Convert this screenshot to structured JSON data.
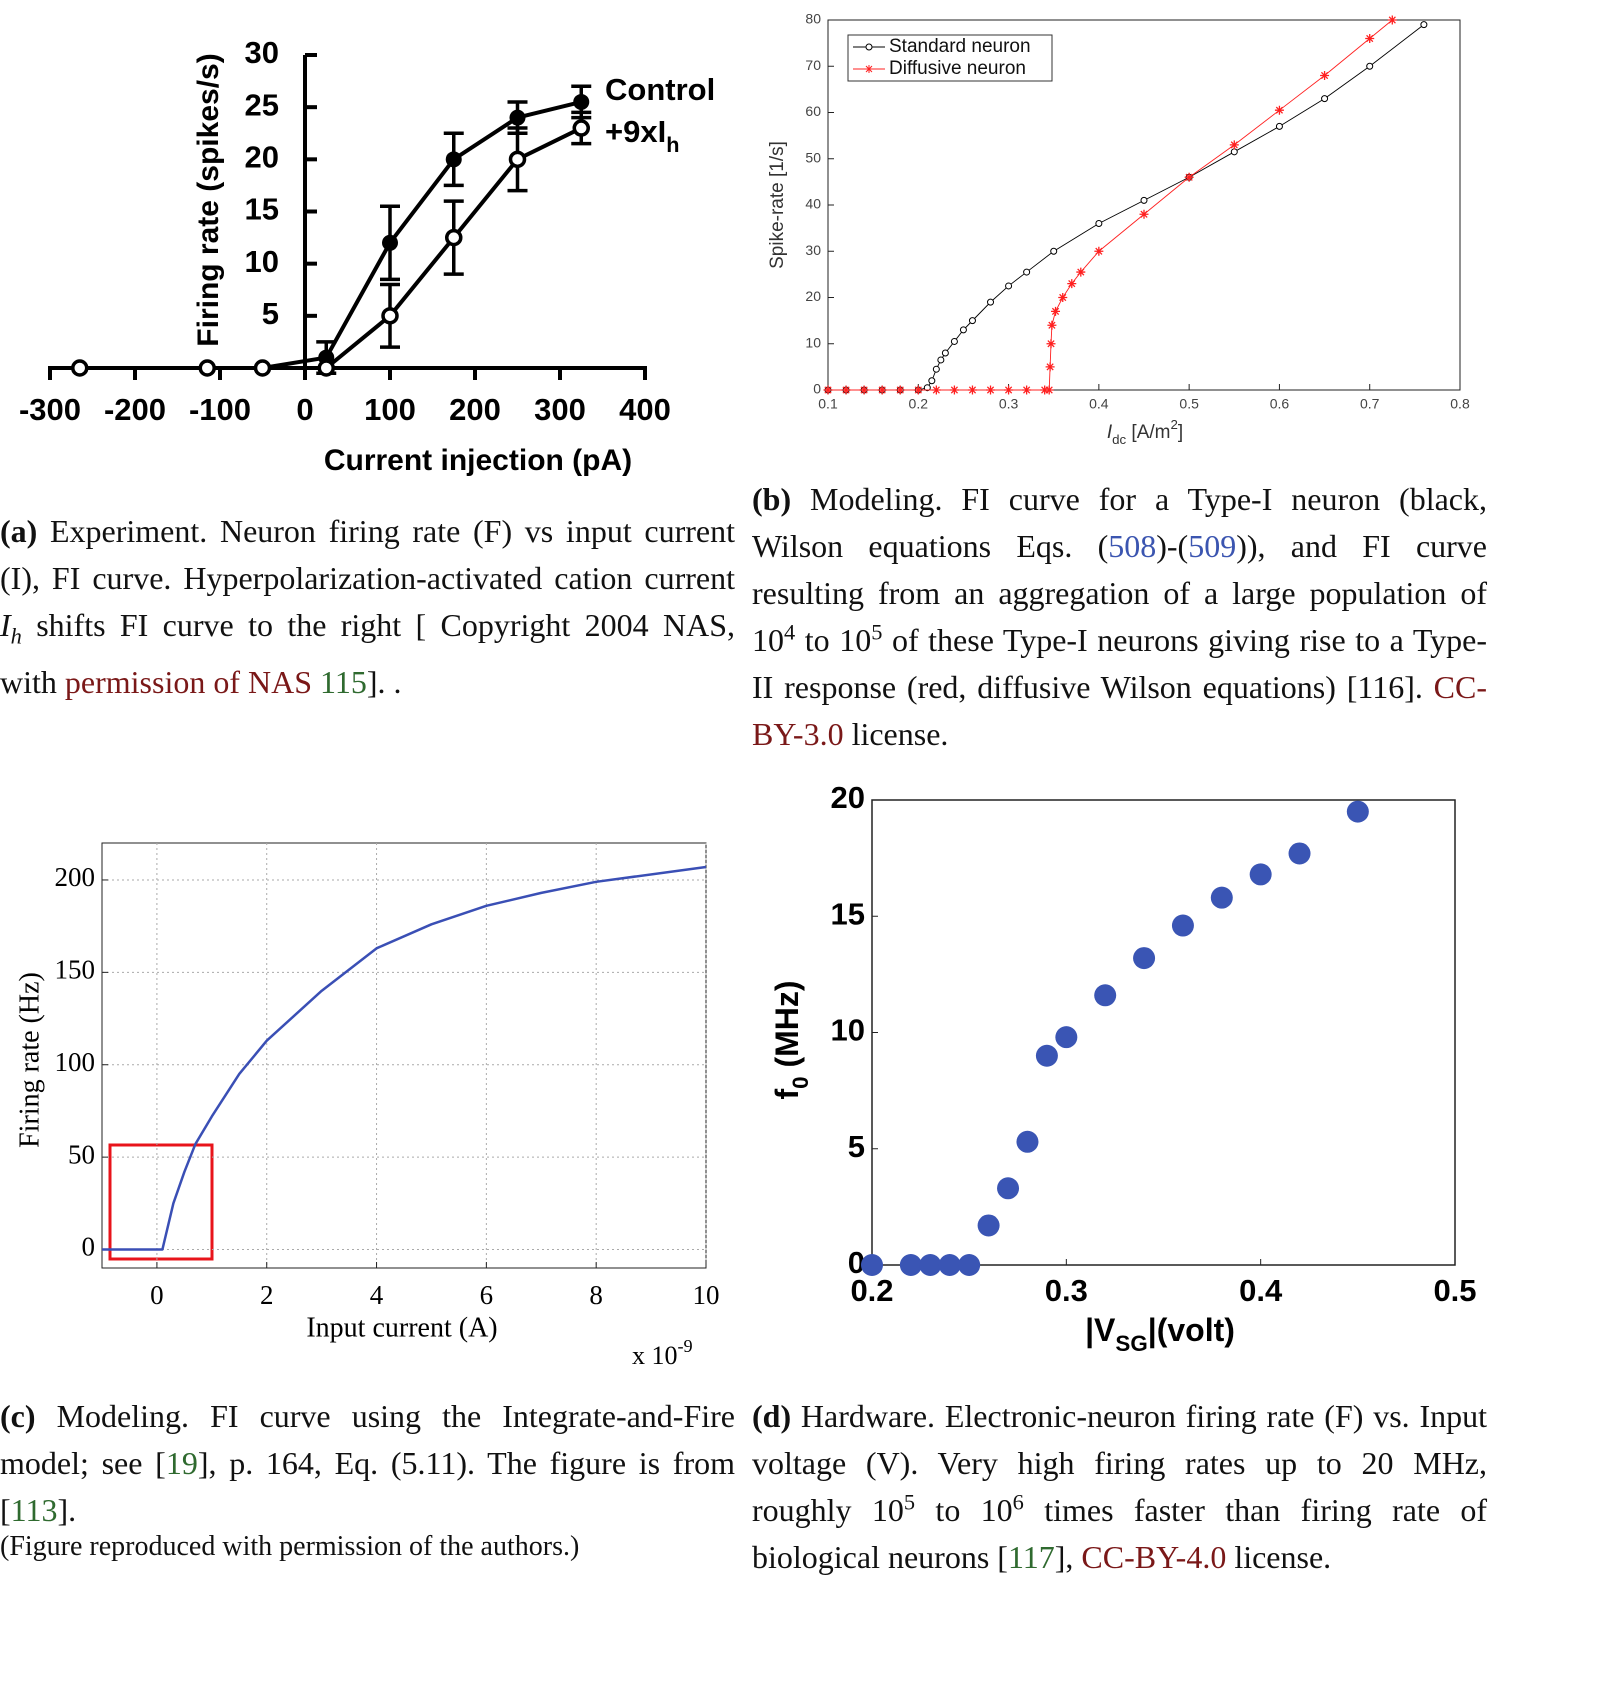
{
  "panels": [
    {
      "chart": {
        "type": "errorbar",
        "x_label": "Current injection (pA)",
        "y_label": "Firing rate (spikes/s)",
        "xlim": [
          -300,
          400
        ],
        "xticks": [
          -300,
          -200,
          -100,
          0,
          100,
          200,
          300,
          400
        ],
        "ylim": [
          0,
          30
        ],
        "yticks": [
          5,
          10,
          15,
          20,
          25,
          30
        ],
        "legend": "upper right",
        "x": [
          -265,
          -115,
          -50,
          25,
          100,
          175,
          250,
          325
        ],
        "series": [
          {
            "name": [
              {
                "text": "Control"
              }
            ],
            "color": "#000000",
            "marker": "filled",
            "values": [
              0,
              0,
              0,
              1,
              12,
              20,
              24,
              25.5
            ],
            "errors": [
              0,
              0,
              0,
              1.5,
              3.5,
              2.5,
              1.5,
              1.5
            ]
          },
          {
            "name": [
              {
                "text": "+9xI"
              },
              {
                "text": "h",
                "style": "sub"
              }
            ],
            "color": "#000000",
            "marker": "open",
            "values": [
              0,
              0,
              0,
              0,
              5,
              12.5,
              20,
              23
            ],
            "errors": [
              0,
              0,
              0,
              0,
              3,
              3.5,
              3,
              1.5
            ]
          }
        ]
      },
      "caption": [
        {
          "text": "(a)",
          "style": "bold"
        },
        {
          "text": " Experiment.  Neuron firing rate (F) vs input current (I), FI curve.  Hyperpolarization-activated cation current "
        },
        {
          "text": "I",
          "style": "italic"
        },
        {
          "text": "h",
          "style": "sub"
        },
        {
          "text": " shifts FI curve to the right [ Copyright 2004 NAS, with "
        },
        {
          "text": "permission of NAS",
          "style": "link"
        },
        {
          "text": " "
        },
        {
          "text": "115",
          "style": "cite"
        },
        {
          "text": "]. ."
        }
      ]
    },
    {
      "chart": {
        "type": "line",
        "x_label": [
          {
            "text": "I",
            "style": "italic"
          },
          {
            "text": "dc",
            "style": "sub"
          },
          {
            "text": "  [A/m"
          },
          {
            "text": "2",
            "style": "sup"
          },
          {
            "text": "]"
          }
        ],
        "y_label": "Spike-rate [1/s]",
        "xlim": [
          0.1,
          0.8
        ],
        "xticks": [
          0.1,
          0.2,
          0.3,
          0.4,
          0.5,
          0.6,
          0.7,
          0.8
        ],
        "ylim": [
          0,
          80
        ],
        "yticks": [
          0,
          10,
          20,
          30,
          40,
          50,
          60,
          70,
          80
        ],
        "legend": "upper left",
        "series": [
          {
            "name": [
              {
                "text": "Standard neuron"
              }
            ],
            "color": "#000000",
            "marker": "circle",
            "x": [
              0.1,
              0.12,
              0.14,
              0.16,
              0.18,
              0.2,
              0.21,
              0.215,
              0.22,
              0.225,
              0.23,
              0.24,
              0.25,
              0.26,
              0.28,
              0.3,
              0.32,
              0.35,
              0.4,
              0.45,
              0.5,
              0.55,
              0.6,
              0.65,
              0.7,
              0.76
            ],
            "values": [
              0,
              0,
              0,
              0,
              0,
              0,
              0.5,
              2,
              4.5,
              6.5,
              8,
              10.5,
              13,
              15,
              19,
              22.5,
              25.5,
              30,
              36,
              41,
              46,
              51.5,
              57,
              63,
              70,
              79
            ]
          },
          {
            "name": [
              {
                "text": "Diffusive neuron"
              }
            ],
            "color": "#ff2020",
            "marker": "asterisk",
            "x": [
              0.1,
              0.12,
              0.14,
              0.16,
              0.18,
              0.2,
              0.22,
              0.24,
              0.26,
              0.28,
              0.3,
              0.32,
              0.34,
              0.345,
              0.346,
              0.347,
              0.348,
              0.352,
              0.36,
              0.37,
              0.38,
              0.4,
              0.45,
              0.5,
              0.55,
              0.6,
              0.65,
              0.7,
              0.725
            ],
            "values": [
              0,
              0,
              0,
              0,
              0,
              0,
              0,
              0,
              0,
              0,
              0,
              0,
              0,
              0,
              5,
              10,
              14,
              17,
              20,
              23,
              25.5,
              30,
              38,
              46,
              53,
              60.5,
              68,
              76,
              80
            ]
          }
        ]
      },
      "caption": [
        {
          "text": "(b)",
          "style": "bold"
        },
        {
          "text": " Modeling.  FI curve for a Type-I neuron (black, Wilson equations Eqs. ("
        },
        {
          "text": "508",
          "style": "eq"
        },
        {
          "text": ")-("
        },
        {
          "text": "509",
          "style": "eq"
        },
        {
          "text": ")), and FI curve resulting from an aggregation of a large population of 10"
        },
        {
          "text": "4",
          "style": "sup"
        },
        {
          "text": " to 10"
        },
        {
          "text": "5",
          "style": "sup"
        },
        {
          "text": " of these Type-I neurons giving rise to a Type-II response (red, diffusive Wilson equations) [116]. "
        },
        {
          "text": "CC-BY-3.0",
          "style": "link"
        },
        {
          "text": " license."
        }
      ]
    },
    {
      "chart": {
        "type": "line",
        "x_label": "Input current (A)",
        "y_label": "Firing rate (Hz)",
        "x_multiplier": [
          {
            "text": "x 10"
          },
          {
            "text": "-9",
            "style": "sup"
          }
        ],
        "xlim": [
          -1,
          10
        ],
        "xticks": [
          0,
          2,
          4,
          6,
          8,
          10
        ],
        "ylim": [
          -10,
          220
        ],
        "yticks": [
          0,
          50,
          100,
          150,
          200
        ],
        "grid": true,
        "series": [
          {
            "color": "#3a4fb5",
            "x": [
              -1,
              0.1,
              0.3,
              0.5,
              0.7,
              1,
              1.5,
              2,
              3,
              4,
              5,
              6,
              7,
              8,
              10
            ],
            "values": [
              0,
              0,
              25,
              42,
              57,
              72,
              95,
              113,
              140,
              163,
              176,
              186,
              193,
              199,
              207
            ]
          }
        ]
      },
      "caption": [
        {
          "text": "(c)",
          "style": "bold"
        },
        {
          "text": " Modeling. FI curve using the Integrate-and-Fire model; see ["
        },
        {
          "text": "19",
          "style": "cite"
        },
        {
          "text": "], p. 164, Eq. (5.11).  The figure is from ["
        },
        {
          "text": "113",
          "style": "cite"
        },
        {
          "text": "]."
        }
      ],
      "note": "(Figure reproduced with permission of the authors.)"
    },
    {
      "chart": {
        "type": "scatter",
        "x_label": [
          {
            "text": "|V"
          },
          {
            "text": "SG",
            "style": "sub"
          },
          {
            "text": "|(volt)"
          }
        ],
        "y_label": [
          {
            "text": "f"
          },
          {
            "text": "0",
            "style": "sub"
          },
          {
            "text": " (MHz)"
          }
        ],
        "xlim": [
          0.2,
          0.5
        ],
        "xticks": [
          0.2,
          0.3,
          0.4,
          0.5
        ],
        "ylim": [
          0,
          20
        ],
        "yticks": [
          0,
          5,
          10,
          15,
          20
        ],
        "series": [
          {
            "color": "#3a55b4",
            "x": [
              0.2,
              0.22,
              0.23,
              0.24,
              0.25,
              0.26,
              0.27,
              0.28,
              0.29,
              0.3,
              0.32,
              0.34,
              0.36,
              0.38,
              0.4,
              0.42,
              0.45
            ],
            "values": [
              0,
              0,
              0,
              0,
              0,
              1.7,
              3.3,
              5.3,
              9,
              9.8,
              11.6,
              13.2,
              14.6,
              15.8,
              16.8,
              17.7,
              19.5
            ]
          }
        ]
      },
      "caption": [
        {
          "text": "(d)",
          "style": "bold"
        },
        {
          "text": " Hardware.  Electronic-neuron firing rate (F) vs. Input voltage (V). Very high firing rates up to 20 MHz, roughly 10"
        },
        {
          "text": "5",
          "style": "sup"
        },
        {
          "text": " to 10"
        },
        {
          "text": "6",
          "style": "sup"
        },
        {
          "text": " times faster than firing rate of biological neurons ["
        },
        {
          "text": "117",
          "style": "cite"
        },
        {
          "text": "], "
        },
        {
          "text": "CC-BY-4.0",
          "style": "link"
        },
        {
          "text": " license."
        }
      ]
    }
  ]
}
